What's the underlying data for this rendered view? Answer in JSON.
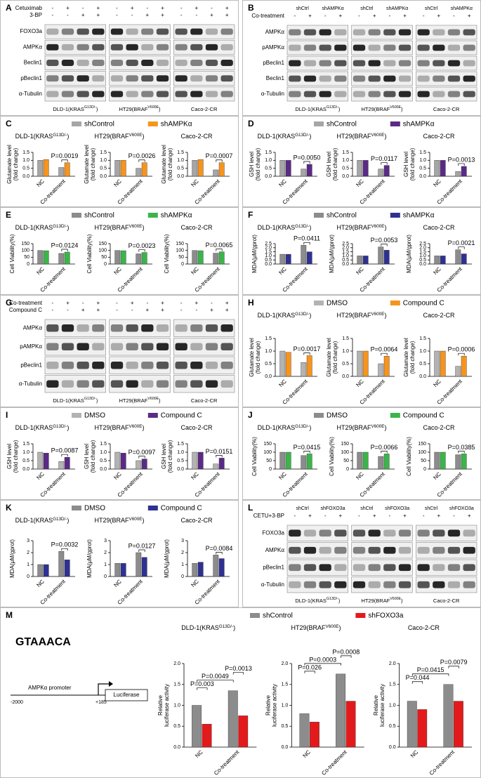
{
  "cell_lines": [
    {
      "name": "DLD-1(KRAS",
      "sup": "G13D/-",
      "end": ")"
    },
    {
      "name": "HT29(BRAF",
      "sup": "V600E",
      "end": ")"
    },
    {
      "name": "Caco-2-CR"
    }
  ],
  "blots": [
    {
      "label": "A",
      "header": [
        {
          "label": "Cetuximab",
          "signs": [
            "-",
            "+",
            "-",
            "+"
          ]
        },
        {
          "label": "3-BP",
          "signs": [
            "-",
            "-",
            "+",
            "+"
          ]
        }
      ],
      "rows": [
        "FOXO3a",
        "AMPKα",
        "Beclin1",
        "pBeclin1",
        "α-Tubulin"
      ]
    },
    {
      "label": "B",
      "groups": [
        "shCtrl",
        "shAMPKα"
      ],
      "header": [
        {
          "label": "Co-treatment",
          "signs": [
            "-",
            "+",
            "-",
            "+"
          ]
        }
      ],
      "rows": [
        "AMPKα",
        "pAMPKα",
        "pBeclin1",
        "Beclin1",
        "α-Tubulin"
      ]
    },
    {
      "label": "G",
      "header": [
        {
          "label": "Co-treatment",
          "signs": [
            "-",
            "+",
            "-",
            "+"
          ]
        },
        {
          "label": "Compound C",
          "signs": [
            "-",
            "-",
            "+",
            "+"
          ]
        }
      ],
      "rows": [
        "AMPKα",
        "pAMPKα",
        "pBeclin1",
        "α-Tubulin"
      ]
    },
    {
      "label": "L",
      "groups": [
        "shCtrl",
        "shFOXO3a"
      ],
      "header": [
        {
          "label": "CETU+3-BP",
          "signs": [
            "-",
            "+",
            "-",
            "+"
          ]
        }
      ],
      "rows": [
        "FOXO3a",
        "AMPKα",
        "pBeclin1",
        "α-Tubulin"
      ]
    }
  ],
  "m_diagram": {
    "motif": "GTAAACA",
    "promoter": "AMPKα promoter",
    "start": "-2000",
    "end": "+185",
    "reporter": "Luciferase"
  },
  "chart_data": [
    {
      "type": "bar",
      "label": "C",
      "ylabel": [
        "Glutamate level",
        "(fold change)"
      ],
      "categories": [
        "NC",
        "Co-treatment"
      ],
      "series": [
        {
          "name": "shControl",
          "color": "#a6a6a6"
        },
        {
          "name": "shAMPKα",
          "color": "#f7941d"
        }
      ],
      "pvalue_color": "#f26522",
      "ylim": [
        0,
        1.5
      ],
      "yticks": [
        {
          "value": 0,
          "label": "0.0"
        },
        0.5,
        {
          "value": 1,
          "label": "1.0"
        },
        {
          "value": 1.5,
          "label": "1.5"
        }
      ],
      "subcharts": [
        {
          "series_values": [
            [
              1.0,
              0.55
            ],
            [
              1.05,
              0.85
            ]
          ],
          "pvalues": [
            "P=0.0019"
          ]
        },
        {
          "series_values": [
            [
              1.0,
              0.5
            ],
            [
              1.0,
              0.85
            ]
          ],
          "pvalues": [
            "P=0.0026"
          ]
        },
        {
          "series_values": [
            [
              1.0,
              0.4
            ],
            [
              1.05,
              0.85
            ]
          ],
          "pvalues": [
            "P=0.0007"
          ]
        }
      ]
    },
    {
      "type": "bar",
      "label": "D",
      "ylabel": [
        "GSH level",
        "(fold change)"
      ],
      "categories": [
        "NC",
        "Co-treatment"
      ],
      "series": [
        {
          "name": "shControl",
          "color": "#a6a6a6"
        },
        {
          "name": "shAMPKα",
          "color": "#5b2a86"
        }
      ],
      "pvalue_color": "#2e3192",
      "ylim": [
        0,
        1.5
      ],
      "yticks": [
        {
          "value": 0,
          "label": "0.0"
        },
        0.5,
        {
          "value": 1,
          "label": "1.0"
        },
        {
          "value": 1.5,
          "label": "1.5"
        }
      ],
      "subcharts": [
        {
          "series_values": [
            [
              1.0,
              0.45
            ],
            [
              1.0,
              0.75
            ]
          ],
          "pvalues": [
            "P=0.0050"
          ]
        },
        {
          "series_values": [
            [
              1.0,
              0.45
            ],
            [
              1.0,
              0.68
            ]
          ],
          "pvalues": [
            "P=0.0117"
          ]
        },
        {
          "series_values": [
            [
              1.0,
              0.3
            ],
            [
              1.0,
              0.62
            ]
          ],
          "pvalues": [
            "P=0.0013"
          ]
        }
      ]
    },
    {
      "type": "bar",
      "label": "E",
      "ylabel": [
        "Cell Viability(%)"
      ],
      "categories": [
        "NC",
        "Co-treatment"
      ],
      "series": [
        {
          "name": "shControl",
          "color": "#8c8c8c"
        },
        {
          "name": "shAMPKα",
          "color": "#3bb54a"
        }
      ],
      "pvalue_color": "#39b54a",
      "ylim": [
        0,
        150
      ],
      "yticks": [
        0,
        50,
        100,
        150
      ],
      "subcharts": [
        {
          "series_values": [
            [
              100,
              78
            ],
            [
              98,
              88
            ]
          ],
          "pvalues": [
            "P=0.0124"
          ]
        },
        {
          "series_values": [
            [
              100,
              75
            ],
            [
              98,
              85
            ]
          ],
          "pvalues": [
            "P=0.0023"
          ]
        },
        {
          "series_values": [
            [
              100,
              80
            ],
            [
              98,
              90
            ]
          ],
          "pvalues": [
            "P=0.0065"
          ]
        }
      ]
    },
    {
      "type": "bar",
      "label": "F",
      "ylabel": [
        "MDA(μM/gprot)"
      ],
      "categories": [
        "NC",
        "Co-treatment"
      ],
      "series": [
        {
          "name": "shControl",
          "color": "#8c8c8c"
        },
        {
          "name": "shAMPKα",
          "color": "#2e3192"
        }
      ],
      "pvalue_color": "#2e3192",
      "ylim": [
        0,
        2.5
      ],
      "yticks": [
        {
          "value": 0,
          "label": "0.0"
        },
        0.5,
        {
          "value": 1,
          "label": "1.0"
        },
        1.5,
        {
          "value": 2,
          "label": "2.0"
        },
        2.5
      ],
      "subcharts": [
        {
          "series_values": [
            [
              1.2,
              2.3
            ],
            [
              1.2,
              1.5
            ]
          ],
          "pvalues": [
            "P=0.0411"
          ]
        },
        {
          "series_values": [
            [
              1.0,
              2.1
            ],
            [
              1.0,
              1.7
            ]
          ],
          "pvalues": [
            "P=0.0053"
          ]
        },
        {
          "series_values": [
            [
              1.0,
              1.75
            ],
            [
              1.0,
              1.25
            ]
          ],
          "pvalues": [
            "P=0.0021"
          ]
        }
      ]
    },
    {
      "type": "bar",
      "label": "H",
      "ylabel": [
        "Glutamate level",
        "(fold change)"
      ],
      "categories": [
        "NC",
        "Co-treatment"
      ],
      "series": [
        {
          "name": "DMSO",
          "color": "#b3b3b3"
        },
        {
          "name": "Compound C",
          "color": "#f7941d"
        }
      ],
      "pvalue_color": "#f26522",
      "ylim": [
        0,
        1.5
      ],
      "yticks": [
        {
          "value": 0,
          "label": "0.0"
        },
        0.5,
        {
          "value": 1,
          "label": "1.0"
        },
        {
          "value": 1.5,
          "label": "1.5"
        }
      ],
      "subcharts": [
        {
          "series_values": [
            [
              1.0,
              0.55
            ],
            [
              0.95,
              0.82
            ]
          ],
          "pvalues": [
            "P=0.0017"
          ]
        },
        {
          "series_values": [
            [
              1.0,
              0.5
            ],
            [
              1.0,
              0.8
            ]
          ],
          "pvalues": [
            "P=0.0064"
          ]
        },
        {
          "series_values": [
            [
              1.0,
              0.4
            ],
            [
              1.0,
              0.8
            ]
          ],
          "pvalues": [
            "P=0.0006"
          ]
        }
      ]
    },
    {
      "type": "bar",
      "label": "I",
      "ylabel": [
        "GSH level",
        "(fold change)"
      ],
      "categories": [
        "NC",
        "Co-treatment"
      ],
      "series": [
        {
          "name": "DMSO",
          "color": "#b3b3b3"
        },
        {
          "name": "Compound C",
          "color": "#5b2a86"
        }
      ],
      "pvalue_color": "#2e3192",
      "ylim": [
        0,
        1.5
      ],
      "yticks": [
        {
          "value": 0,
          "label": "0.0"
        },
        0.5,
        {
          "value": 1,
          "label": "1.0"
        },
        {
          "value": 1.5,
          "label": "1.5"
        }
      ],
      "subcharts": [
        {
          "series_values": [
            [
              1.0,
              0.45
            ],
            [
              0.95,
              0.7
            ]
          ],
          "pvalues": [
            "P=0.0087"
          ]
        },
        {
          "series_values": [
            [
              1.0,
              0.5
            ],
            [
              0.95,
              0.6
            ]
          ],
          "pvalues": [
            "P=0.0097"
          ]
        },
        {
          "series_values": [
            [
              1.0,
              0.3
            ],
            [
              1.0,
              0.65
            ]
          ],
          "pvalues": [
            "P=0.0151"
          ]
        }
      ]
    },
    {
      "type": "bar",
      "label": "J",
      "ylabel": [
        "Cell Viability(%)"
      ],
      "categories": [
        "NC",
        "Co-treatment"
      ],
      "series": [
        {
          "name": "DMSO",
          "color": "#8c8c8c"
        },
        {
          "name": "Compound C",
          "color": "#3bb54a"
        }
      ],
      "pvalue_color": "#39b54a",
      "ylim": [
        0,
        150
      ],
      "yticks": [
        0,
        50,
        100,
        150
      ],
      "subcharts": [
        {
          "series_values": [
            [
              100,
              80
            ],
            [
              100,
              90
            ]
          ],
          "pvalues": [
            "P=0.0415"
          ]
        },
        {
          "series_values": [
            [
              100,
              75
            ],
            [
              100,
              90
            ]
          ],
          "pvalues": [
            "P=0.0066"
          ]
        },
        {
          "series_values": [
            [
              100,
              85
            ],
            [
              100,
              90
            ]
          ],
          "pvalues": [
            "P=0.0385"
          ]
        }
      ]
    },
    {
      "type": "bar",
      "label": "K",
      "ylabel": [
        "MDA(μM/gprot)"
      ],
      "categories": [
        "NC",
        "Co-treatment"
      ],
      "series": [
        {
          "name": "DMSO",
          "color": "#8c8c8c"
        },
        {
          "name": "Compound C",
          "color": "#2e3192"
        }
      ],
      "pvalue_color": "#2e3192",
      "ylim": [
        0,
        3
      ],
      "yticks": [
        0,
        1,
        2,
        3
      ],
      "subcharts": [
        {
          "series_values": [
            [
              1.0,
              2.1
            ],
            [
              1.0,
              1.4
            ]
          ],
          "pvalues": [
            "P=0.0032"
          ]
        },
        {
          "series_values": [
            [
              1.1,
              2.0
            ],
            [
              1.1,
              1.6
            ]
          ],
          "pvalues": [
            "P=0.0127"
          ]
        },
        {
          "series_values": [
            [
              1.1,
              1.8
            ],
            [
              1.2,
              1.5
            ]
          ],
          "pvalues": [
            "P=0.0084"
          ]
        }
      ]
    },
    {
      "type": "bar",
      "label": "M",
      "ylabel": [
        "Relative",
        "luciferase activity"
      ],
      "categories": [
        "NC",
        "Co-treatment"
      ],
      "series": [
        {
          "name": "shControl",
          "color": "#8c8c8c"
        },
        {
          "name": "shFOXO3a",
          "color": "#e31a1c"
        }
      ],
      "pvalue_color": "#000000",
      "ylim": [
        0,
        2
      ],
      "yticks": [
        {
          "value": 0,
          "label": "0.0"
        },
        0.5,
        {
          "value": 1,
          "label": "1.0"
        },
        1.5,
        {
          "value": 2,
          "label": "2.0"
        }
      ],
      "subcharts": [
        {
          "series_values": [
            [
              1.0,
              1.35
            ],
            [
              0.55,
              0.75
            ]
          ],
          "pvalues": [
            "P=0.003",
            "P=0.0049",
            "P=0.0013"
          ]
        },
        {
          "series_values": [
            [
              0.8,
              1.75
            ],
            [
              0.6,
              1.1
            ]
          ],
          "pvalues": [
            "P=0.026",
            "P=0.0003",
            "P=0.0008"
          ]
        },
        {
          "series_values": [
            [
              1.1,
              1.5
            ],
            [
              0.9,
              1.1
            ]
          ],
          "pvalues": [
            "P=0.044",
            "P=0.0415",
            "P=0.0079"
          ]
        }
      ]
    }
  ]
}
